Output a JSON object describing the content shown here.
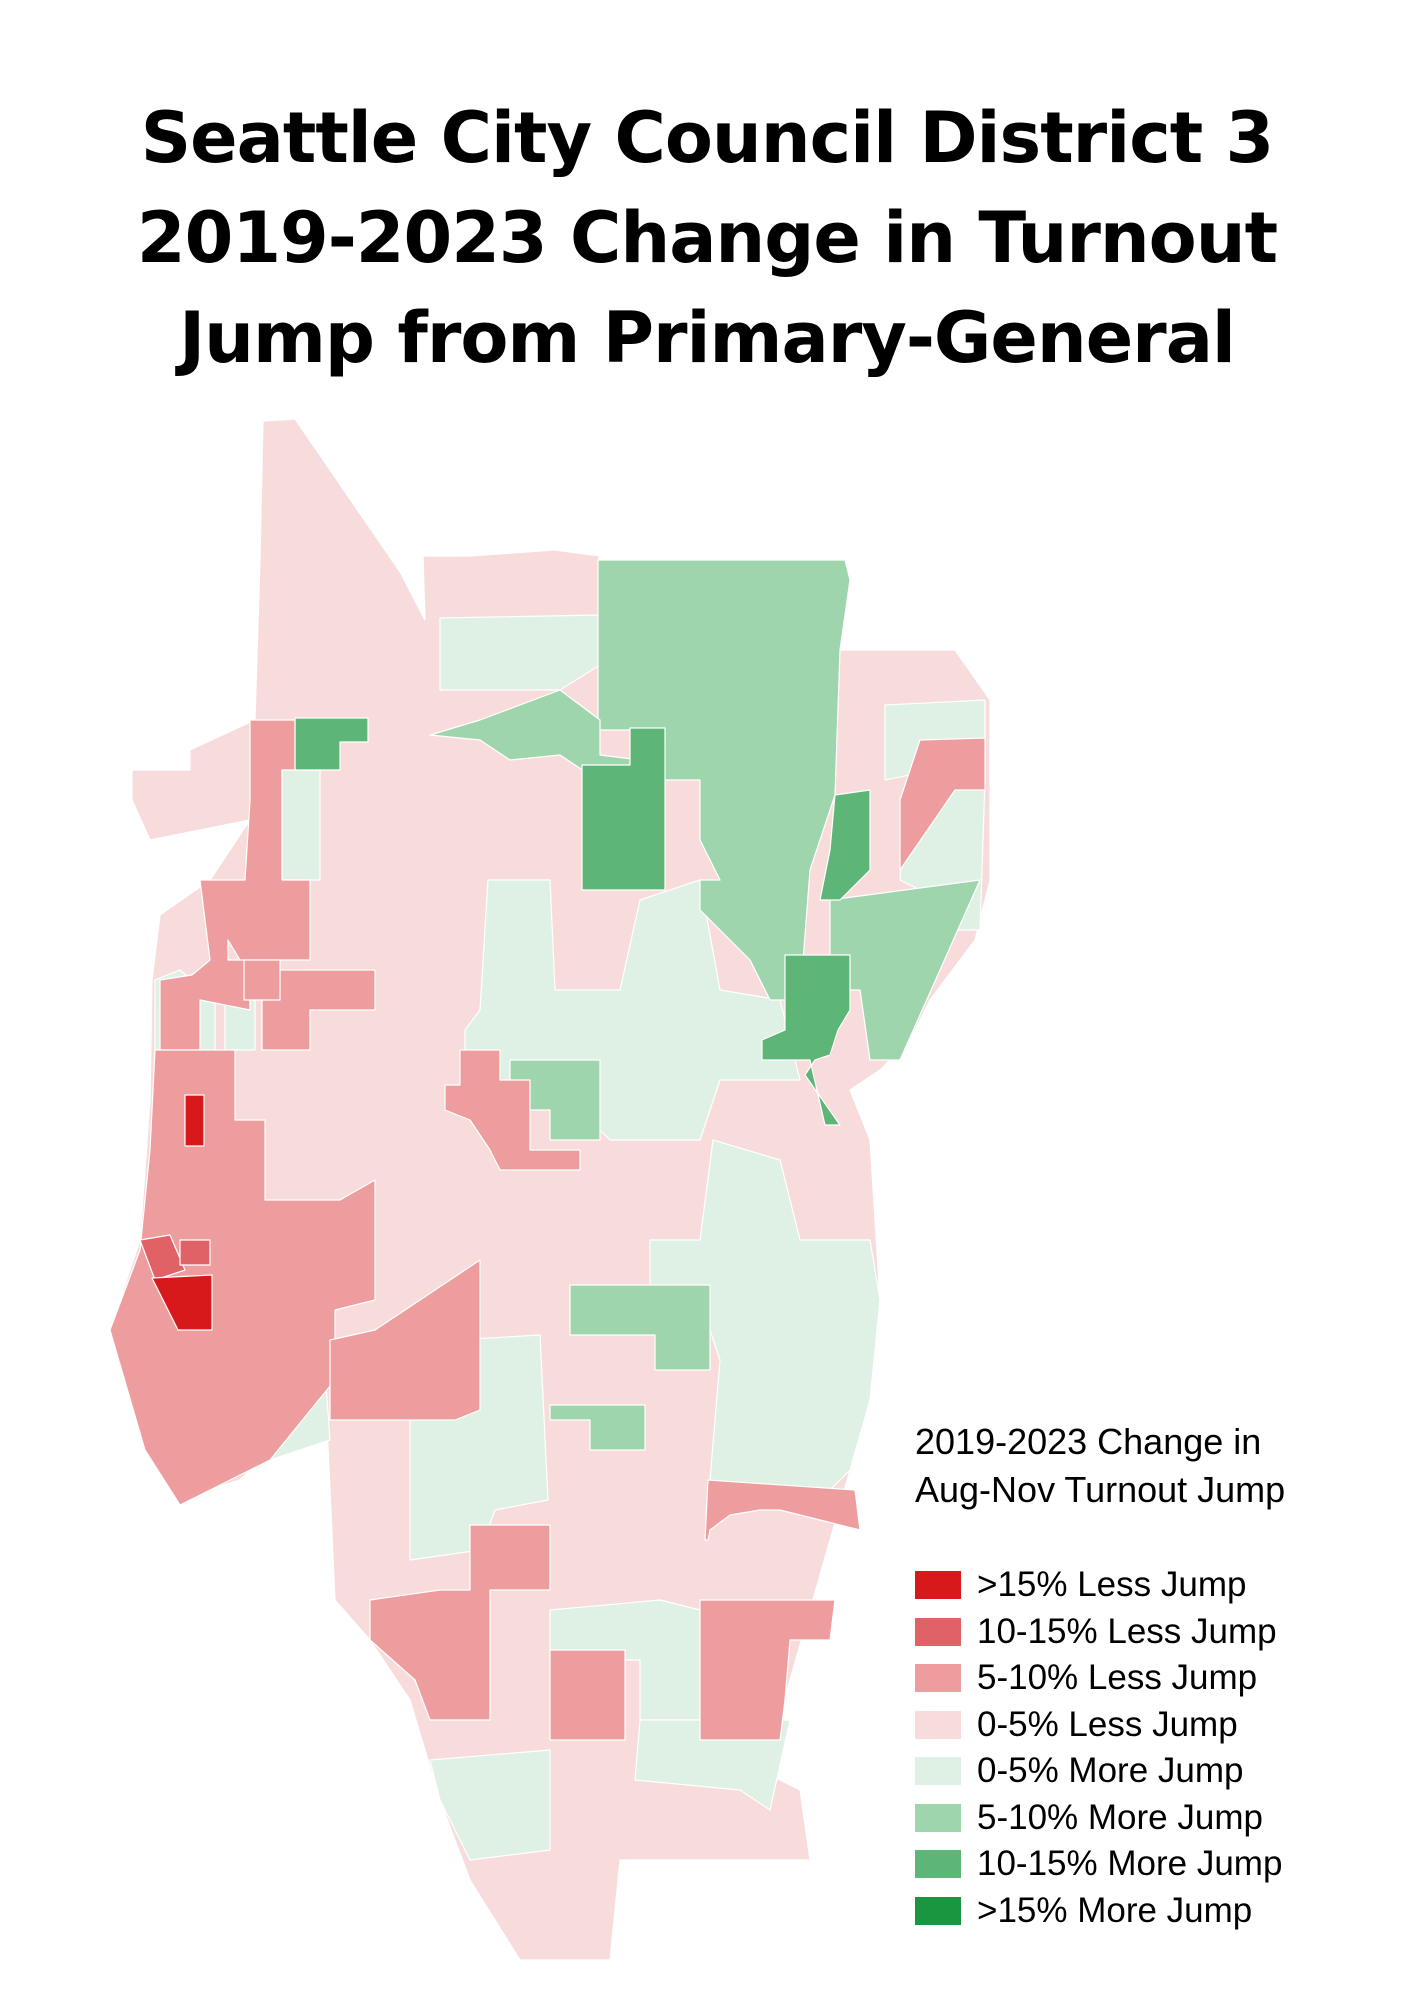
{
  "title": {
    "lines": [
      "Seattle City Council District 3",
      "2019-2023 Change in Turnout",
      "Jump from Primary-General"
    ]
  },
  "legend": {
    "title_lines": [
      "2019-2023 Change in",
      "Aug-Nov Turnout Jump"
    ],
    "items": [
      {
        "label": ">15% Less Jump",
        "color": "#d7191c"
      },
      {
        "label": "10-15% Less Jump",
        "color": "#e06266"
      },
      {
        "label": "5-10% Less Jump",
        "color": "#ee9d9f"
      },
      {
        "label": "0-5% Less Jump",
        "color": "#f8dcdc"
      },
      {
        "label": "0-5% More Jump",
        "color": "#dff0e4"
      },
      {
        "label": "5-10% More Jump",
        "color": "#9fd5ad"
      },
      {
        "label": "10-15% More Jump",
        "color": "#5db577"
      },
      {
        "label": ">15% More Jump",
        "color": "#1a9641"
      }
    ]
  }
}
